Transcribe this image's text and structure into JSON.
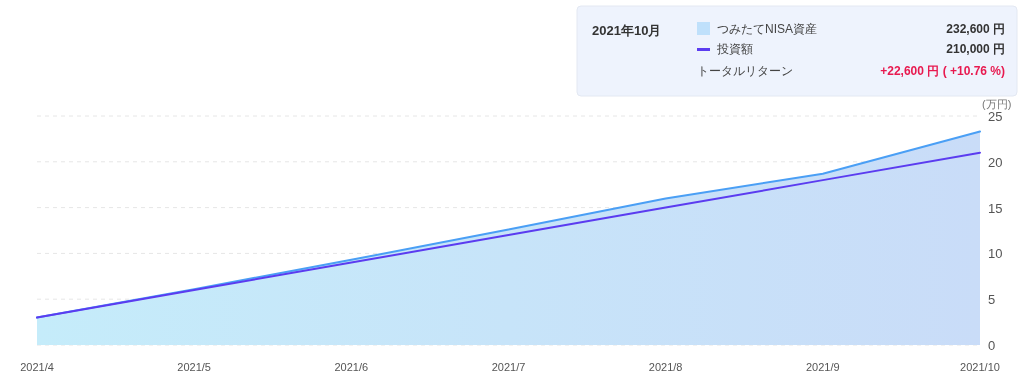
{
  "chart_data": {
    "type": "line",
    "ylabel": "(万円)",
    "categories": [
      "2021/4",
      "2021/5",
      "2021/6",
      "2021/7",
      "2021/8",
      "2021/9",
      "2021/10"
    ],
    "series": [
      {
        "name": "つみたてNISA資産",
        "type": "area",
        "color": "#4a9ff5",
        "values": [
          3.0,
          6.1,
          9.3,
          12.6,
          16.0,
          18.7,
          23.3
        ]
      },
      {
        "name": "投資額",
        "color": "#5b3cf0",
        "values": [
          3,
          6,
          9,
          12,
          15,
          18,
          21
        ]
      }
    ],
    "ylim": [
      0,
      25
    ],
    "yticks": [
      0,
      5,
      10,
      15,
      20,
      25
    ],
    "grid": "y",
    "legend": "top right",
    "annotations": [
      "2021年10月",
      "232,600 円",
      "210,000 円",
      "トータルリターン",
      "+22,600 円 ( +10.76 %)"
    ]
  }
}
